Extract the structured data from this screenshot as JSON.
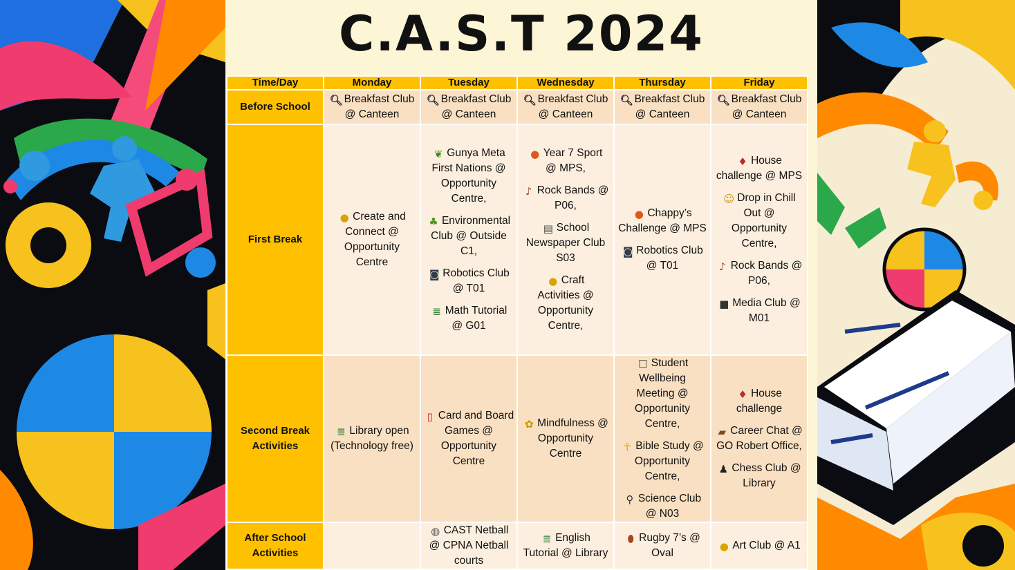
{
  "title": "C.A.S.T 2024",
  "headers": [
    "Time/Day",
    "Monday",
    "Tuesday",
    "Wednesday",
    "Thursday",
    "Friday"
  ],
  "rows": [
    {
      "label": [
        "Before School"
      ],
      "cells": [
        [
          {
            "icon": "magnifier-icon",
            "lines": [
              "Breakfast Club",
              "@ Canteen"
            ]
          }
        ],
        [
          {
            "icon": "magnifier-icon",
            "lines": [
              "Breakfast Club",
              "@ Canteen"
            ]
          }
        ],
        [
          {
            "icon": "magnifier-icon",
            "lines": [
              "Breakfast Club",
              "@ Canteen"
            ]
          }
        ],
        [
          {
            "icon": "magnifier-icon",
            "lines": [
              "Breakfast Club",
              "@ Canteen"
            ]
          }
        ],
        [
          {
            "icon": "magnifier-icon",
            "lines": [
              "Breakfast Club",
              "@ Canteen"
            ]
          }
        ]
      ]
    },
    {
      "label": [
        "First Break"
      ],
      "cells": [
        [
          {
            "icon": "palette-icon",
            "lines": [
              "Create and",
              "Connect @",
              "Opportunity",
              "Centre"
            ]
          }
        ],
        [
          {
            "icon": "leaf-icon",
            "lines": [
              "Gunya Meta",
              "First Nations @",
              "Opportunity",
              "Centre,"
            ]
          },
          {
            "icon": "sprout-icon",
            "lines": [
              "Environmental",
              "Club @ Outside",
              "C1,"
            ]
          },
          {
            "icon": "robot-icon",
            "lines": [
              "Robotics Club",
              "@ T01"
            ]
          },
          {
            "icon": "books-icon",
            "lines": [
              "Math Tutorial",
              "@ G01"
            ]
          }
        ],
        [
          {
            "icon": "basketball-icon",
            "lines": [
              "Year 7 Sport",
              "@ MPS,"
            ]
          },
          {
            "icon": "guitar-icon",
            "lines": [
              "Rock Bands @",
              "P06,"
            ]
          },
          {
            "icon": "newspaper-icon",
            "lines": [
              "School",
              "Newspaper Club",
              "S03"
            ]
          },
          {
            "icon": "palette-icon",
            "lines": [
              "Craft",
              "Activities @",
              "Opportunity",
              "Centre,"
            ]
          }
        ],
        [
          {
            "icon": "basketball-icon",
            "lines": [
              "Chappy’s",
              "Challenge @ MPS"
            ]
          },
          {
            "icon": "robot-icon",
            "lines": [
              "Robotics Club",
              "@ T01"
            ]
          }
        ],
        [
          {
            "icon": "joystick-icon",
            "lines": [
              "House",
              "challenge @ MPS"
            ]
          },
          {
            "icon": "person-icon",
            "lines": [
              "Drop in Chill",
              "Out @",
              "Opportunity",
              "Centre,"
            ]
          },
          {
            "icon": "guitar-icon",
            "lines": [
              "Rock Bands @",
              "P06,"
            ]
          },
          {
            "icon": "camera-icon",
            "lines": [
              "Media Club @",
              "M01"
            ]
          }
        ]
      ]
    },
    {
      "label": [
        "Second Break",
        "Activities"
      ],
      "cells": [
        [
          {
            "icon": "books-icon",
            "lines": [
              "Library open",
              "(Technology free)"
            ]
          }
        ],
        [
          {
            "icon": "cards-icon",
            "lines": [
              "Card and Board",
              "Games @",
              "Opportunity",
              "Centre"
            ]
          }
        ],
        [
          {
            "icon": "lotus-icon",
            "lines": [
              "Mindfulness @",
              "Opportunity",
              "Centre"
            ]
          }
        ],
        [
          {
            "icon": "speech-bubble-icon",
            "lines": [
              "Student",
              "Wellbeing",
              "Meeting @",
              "Opportunity",
              "Centre,"
            ]
          },
          {
            "icon": "praying-hands-icon",
            "lines": [
              "Bible Study @",
              "Opportunity",
              "Centre,"
            ]
          },
          {
            "icon": "microscope-icon",
            "lines": [
              "Science Club",
              "@ N03"
            ]
          }
        ],
        [
          {
            "icon": "joystick-icon",
            "lines": [
              "House",
              "challenge"
            ]
          },
          {
            "icon": "briefcase-icon",
            "lines": [
              "Career Chat @",
              "GO Robert Office,"
            ]
          },
          {
            "icon": "chess-pawn-icon",
            "lines": [
              "Chess Club @",
              "Library"
            ]
          }
        ]
      ]
    },
    {
      "label": [
        "After School",
        "Activities"
      ],
      "cells": [
        [],
        [
          {
            "icon": "netball-icon",
            "lines": [
              "CAST Netball",
              "@ CPNA Netball",
              "courts"
            ]
          }
        ],
        [
          {
            "icon": "books-icon",
            "lines": [
              "English",
              "Tutorial @ Library"
            ]
          }
        ],
        [
          {
            "icon": "rugby-ball-icon",
            "lines": [
              "Rugby 7’s @",
              "Oval"
            ]
          }
        ],
        [
          {
            "icon": "palette-icon",
            "lines": [
              "Art Club @ A1"
            ]
          }
        ]
      ]
    }
  ]
}
